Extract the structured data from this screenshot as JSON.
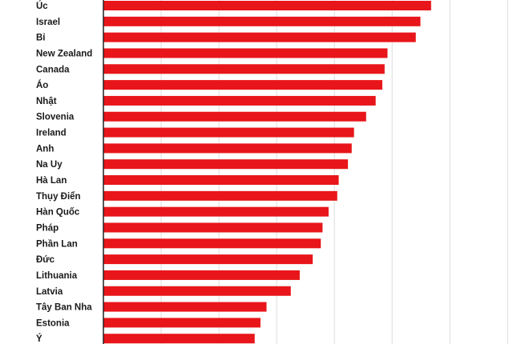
{
  "chart_data": {
    "type": "bar",
    "orientation": "horizontal",
    "categories": [
      "Úc",
      "Israel",
      "Bỉ",
      "New Zealand",
      "Canada",
      "Áo",
      "Nhật",
      "Slovenia",
      "Ireland",
      "Anh",
      "Na Uy",
      "Hà Lan",
      "Thụy Điển",
      "Hàn Quốc",
      "Pháp",
      "Phần Lan",
      "Đức",
      "Lithuania",
      "Latvia",
      "Tây Ban Nha",
      "Estonia",
      "Ý"
    ],
    "values": [
      113.5,
      109.8,
      108.2,
      98.4,
      97.4,
      96.6,
      94.3,
      91.0,
      86.8,
      86.0,
      84.7,
      81.5,
      81.0,
      78.0,
      75.9,
      75.3,
      72.5,
      68.0,
      64.9,
      56.5,
      54.4,
      52.4
    ],
    "xlim": [
      0,
      140
    ],
    "grid": true,
    "bar_color": "#e8161a",
    "axis_color": "#222222",
    "grid_color": "#dddddd"
  }
}
